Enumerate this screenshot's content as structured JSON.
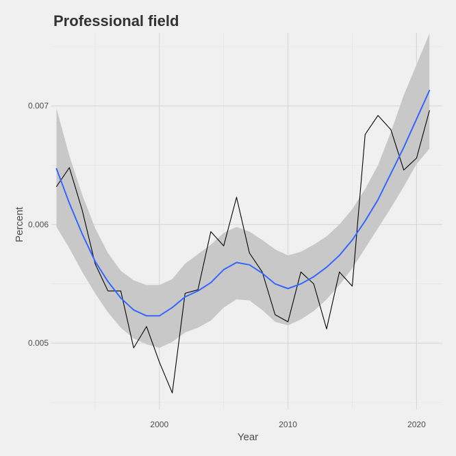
{
  "chart_data": {
    "type": "line",
    "title": "Professional field",
    "xlabel": "Year",
    "ylabel": "Percent",
    "xlim": [
      1991.6,
      2022.0
    ],
    "ylim": [
      0.004441,
      0.007616
    ],
    "x_ticks": [
      2000,
      2010,
      2020
    ],
    "x_tick_labels": [
      "2000",
      "2010",
      "2020"
    ],
    "y_ticks": [
      0.005,
      0.006,
      0.007
    ],
    "y_tick_labels": [
      "0.005",
      "0.006",
      "0.007"
    ],
    "grid": true,
    "legend": "none",
    "series": [
      {
        "kind": "observed",
        "color": "#000000",
        "x": [
          1992,
          1993,
          1994,
          1995,
          1996,
          1997,
          1998,
          1999,
          2000,
          2001,
          2002,
          2003,
          2004,
          2005,
          2006,
          2007,
          2008,
          2009,
          2010,
          2011,
          2012,
          2013,
          2014,
          2015,
          2016,
          2017,
          2018,
          2019,
          2020,
          2021
        ],
        "values": [
          0.00632,
          0.00648,
          0.00612,
          0.00567,
          0.00544,
          0.00544,
          0.00496,
          0.00514,
          0.00484,
          0.00458,
          0.00542,
          0.00545,
          0.00594,
          0.00582,
          0.00623,
          0.00576,
          0.0056,
          0.00524,
          0.00518,
          0.0056,
          0.0055,
          0.00512,
          0.0056,
          0.00548,
          0.00676,
          0.00692,
          0.0068,
          0.00646,
          0.00656,
          0.00696
        ]
      },
      {
        "kind": "smooth",
        "color": "#3366ff",
        "x": [
          1992,
          1993,
          1994,
          1995,
          1996,
          1997,
          1998,
          1999,
          2000,
          2001,
          2002,
          2003,
          2004,
          2005,
          2006,
          2007,
          2008,
          2009,
          2010,
          2011,
          2012,
          2013,
          2014,
          2015,
          2016,
          2017,
          2018,
          2019,
          2020,
          2021
        ],
        "values": [
          0.00647,
          0.00618,
          0.00592,
          0.00569,
          0.00552,
          0.00538,
          0.00528,
          0.00523,
          0.00523,
          0.0053,
          0.00539,
          0.00544,
          0.00551,
          0.00562,
          0.00568,
          0.00566,
          0.00559,
          0.0055,
          0.00546,
          0.0055,
          0.00556,
          0.00564,
          0.00574,
          0.00587,
          0.00603,
          0.00621,
          0.00643,
          0.00665,
          0.00689,
          0.00713
        ]
      }
    ],
    "confidence_band": {
      "color": "#c8c8c8",
      "x": [
        1992,
        1993,
        1994,
        1995,
        1996,
        1997,
        1998,
        1999,
        2000,
        2001,
        2002,
        2003,
        2004,
        2005,
        2006,
        2007,
        2008,
        2009,
        2010,
        2011,
        2012,
        2013,
        2014,
        2015,
        2016,
        2017,
        2018,
        2019,
        2020,
        2021
      ],
      "lower": [
        0.00598,
        0.0058,
        0.0056,
        0.00542,
        0.00526,
        0.00513,
        0.00504,
        0.00499,
        0.00496,
        0.00501,
        0.00509,
        0.00513,
        0.00519,
        0.0053,
        0.00537,
        0.00536,
        0.00528,
        0.00518,
        0.00515,
        0.0052,
        0.00527,
        0.00537,
        0.00549,
        0.00563,
        0.0058,
        0.00597,
        0.00614,
        0.00632,
        0.00651,
        0.00664
      ],
      "upper": [
        0.00698,
        0.00658,
        0.00625,
        0.00597,
        0.00576,
        0.00561,
        0.00553,
        0.00549,
        0.00549,
        0.00554,
        0.00567,
        0.00575,
        0.00583,
        0.00593,
        0.00598,
        0.00594,
        0.00587,
        0.00579,
        0.00574,
        0.00577,
        0.00583,
        0.0059,
        0.006,
        0.00613,
        0.0063,
        0.0065,
        0.00678,
        0.00709,
        0.00735,
        0.00761
      ]
    }
  }
}
